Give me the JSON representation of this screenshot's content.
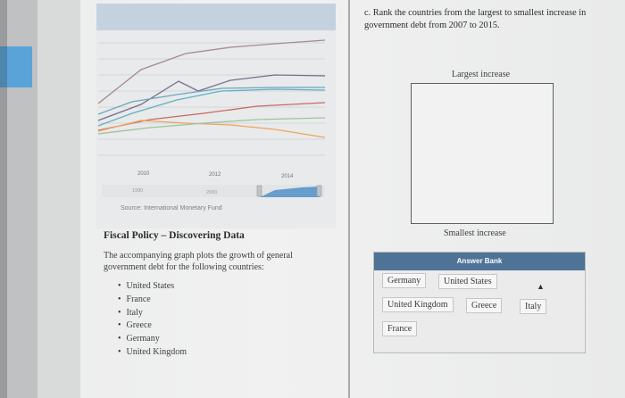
{
  "chart": {
    "x_ticks": [
      "2010",
      "2012",
      "2014"
    ],
    "navigator_ticks": [
      "1990",
      "2000"
    ],
    "source": "Source: International Monetary Fund",
    "line_colors": [
      "#a58a8e",
      "#7b6c8d",
      "#6aa7bd",
      "#5fb1c4",
      "#c86a62",
      "#f0a35c",
      "#9bc49a"
    ],
    "navigator_color": "#4f90c9"
  },
  "left": {
    "title": "Fiscal Policy – Discovering Data",
    "description": "The accompanying graph plots the growth of general government debt for the following countries:",
    "countries": [
      "United States",
      "France",
      "Italy",
      "Greece",
      "Germany",
      "United Kingdom"
    ]
  },
  "right": {
    "question": "c. Rank the countries from the largest to smallest increase in government debt from 2007 to 2015.",
    "largest_label": "Largest increase",
    "smallest_label": "Smallest increase",
    "bank_title": "Answer Bank",
    "chips": [
      "Germany",
      "United States",
      "United Kingdom",
      "Greece",
      "Italy",
      "France"
    ]
  }
}
